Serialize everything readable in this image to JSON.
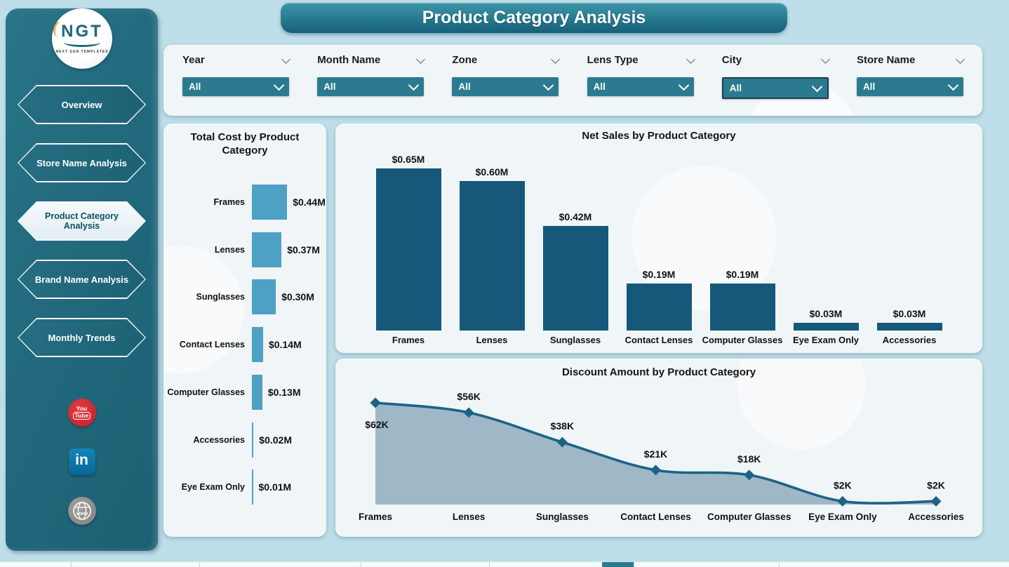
{
  "header": {
    "title": "Product Category Analysis"
  },
  "sidebar": {
    "logo": {
      "abbr": "NGT",
      "subtitle": "NEXT GEN TEMPLATES"
    },
    "nav": [
      {
        "label": "Overview",
        "active": false
      },
      {
        "label": "Store Name Analysis",
        "active": false
      },
      {
        "label": "Product Category Analysis",
        "active": true
      },
      {
        "label": "Brand Name Analysis",
        "active": false
      },
      {
        "label": "Monthly Trends",
        "active": false
      }
    ],
    "social": [
      {
        "name": "youtube",
        "line1": "You",
        "line2": "Tube"
      },
      {
        "name": "linkedin",
        "label": "in"
      },
      {
        "name": "website",
        "label": "www"
      }
    ]
  },
  "filters": {
    "items": [
      {
        "label": "Year",
        "value": "All",
        "highlighted": false
      },
      {
        "label": "Month Name",
        "value": "All",
        "highlighted": false
      },
      {
        "label": "Zone",
        "value": "All",
        "highlighted": false
      },
      {
        "label": "Lens Type",
        "value": "All",
        "highlighted": false
      },
      {
        "label": "City",
        "value": "All",
        "highlighted": true
      },
      {
        "label": "Store Name",
        "value": "All",
        "highlighted": false
      }
    ]
  },
  "chart_data": [
    {
      "type": "bar",
      "orientation": "horizontal",
      "title": "Total Cost by Product Category",
      "categories": [
        "Frames",
        "Lenses",
        "Sunglasses",
        "Contact Lenses",
        "Computer Glasses",
        "Accessories",
        "Eye Exam Only"
      ],
      "values": [
        0.44,
        0.37,
        0.3,
        0.14,
        0.13,
        0.02,
        0.01
      ],
      "labels": [
        "$0.44M",
        "$0.37M",
        "$0.30M",
        "$0.14M",
        "$0.13M",
        "$0.02M",
        "$0.01M"
      ],
      "bar_color": "#4EA0C4",
      "xlabel": "",
      "ylabel": "",
      "xlim": [
        0,
        0.47
      ],
      "grid": false,
      "legend": "none",
      "units": "M USD"
    },
    {
      "type": "bar",
      "orientation": "vertical",
      "title": "Net Sales by Product Category",
      "categories": [
        "Frames",
        "Lenses",
        "Sunglasses",
        "Contact Lenses",
        "Computer Glasses",
        "Eye Exam Only",
        "Accessories"
      ],
      "values": [
        0.65,
        0.6,
        0.42,
        0.19,
        0.19,
        0.03,
        0.03
      ],
      "labels": [
        "$0.65M",
        "$0.60M",
        "$0.42M",
        "$0.19M",
        "$0.19M",
        "$0.03M",
        "$0.03M"
      ],
      "bar_color": "#16587A",
      "xlabel": "",
      "ylabel": "",
      "ylim": [
        0,
        0.72
      ],
      "grid": false,
      "legend": "none",
      "units": "M USD"
    },
    {
      "type": "area",
      "title": "Discount Amount by Product Category",
      "categories": [
        "Frames",
        "Lenses",
        "Sunglasses",
        "Contact Lenses",
        "Computer Glasses",
        "Eye Exam Only",
        "Accessories"
      ],
      "values": [
        62,
        56,
        38,
        21,
        18,
        2,
        2
      ],
      "labels": [
        "$62K",
        "$56K",
        "$38K",
        "$21K",
        "$18K",
        "$2K",
        "$2K"
      ],
      "line_color": "#1C6387",
      "fill_color": "#9AB4C4",
      "marker": "diamond",
      "xlabel": "",
      "ylabel": "",
      "ylim": [
        0,
        70
      ],
      "grid": false,
      "legend": "none",
      "units": "K USD"
    }
  ],
  "colors": {
    "page_bg": "#BEDEE9",
    "sidebar_teal": "#226A7E",
    "header_top": "#3D95A8",
    "header_bottom": "#17607A",
    "panel_bg": "#F0F5F7",
    "dropdown_teal": "#2B7A90",
    "bar_dark": "#16587A",
    "bar_light": "#4EA0C4",
    "area_line": "#1C6387",
    "area_fill": "#9AB4C4",
    "youtube_red": "#C41E25",
    "linkedin_blue": "#0E76A8",
    "website_gray": "#8F8F8F"
  }
}
